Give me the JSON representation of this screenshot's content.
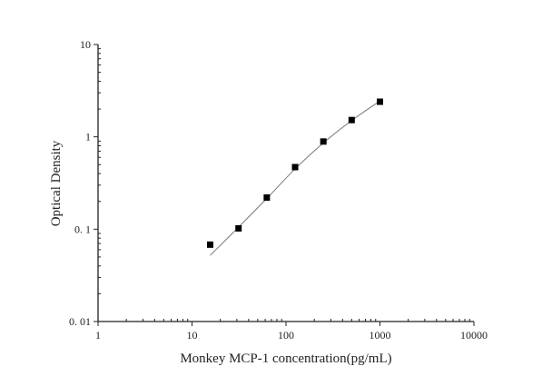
{
  "chart_data": {
    "type": "scatter",
    "title": "",
    "xlabel": "Monkey MCP-1 concentration(pg/mL)",
    "ylabel": "Optical Density",
    "x_scale": "log",
    "y_scale": "log",
    "xlim": [
      1,
      10000
    ],
    "ylim": [
      0.01,
      10
    ],
    "grid": false,
    "x_ticks": [
      1,
      10,
      100,
      1000,
      10000
    ],
    "x_tick_labels": [
      "1",
      "10",
      "100",
      "1000",
      "10000"
    ],
    "y_ticks": [
      0.01,
      0.1,
      1,
      10
    ],
    "y_tick_labels": [
      "0. 01",
      "0. 1",
      "1",
      "10"
    ],
    "points": {
      "x": [
        15.6,
        31.25,
        62.5,
        125,
        250,
        500,
        1000
      ],
      "y": [
        0.068,
        0.102,
        0.22,
        0.47,
        0.89,
        1.52,
        2.4
      ]
    },
    "fit_curve": {
      "x": [
        15.6,
        31.25,
        62.5,
        125,
        250,
        500,
        1000
      ],
      "y": [
        0.052,
        0.105,
        0.215,
        0.45,
        0.86,
        1.5,
        2.45
      ]
    },
    "colors": {
      "points": "#000000",
      "curve": "#777777",
      "axes": "#222222"
    }
  }
}
